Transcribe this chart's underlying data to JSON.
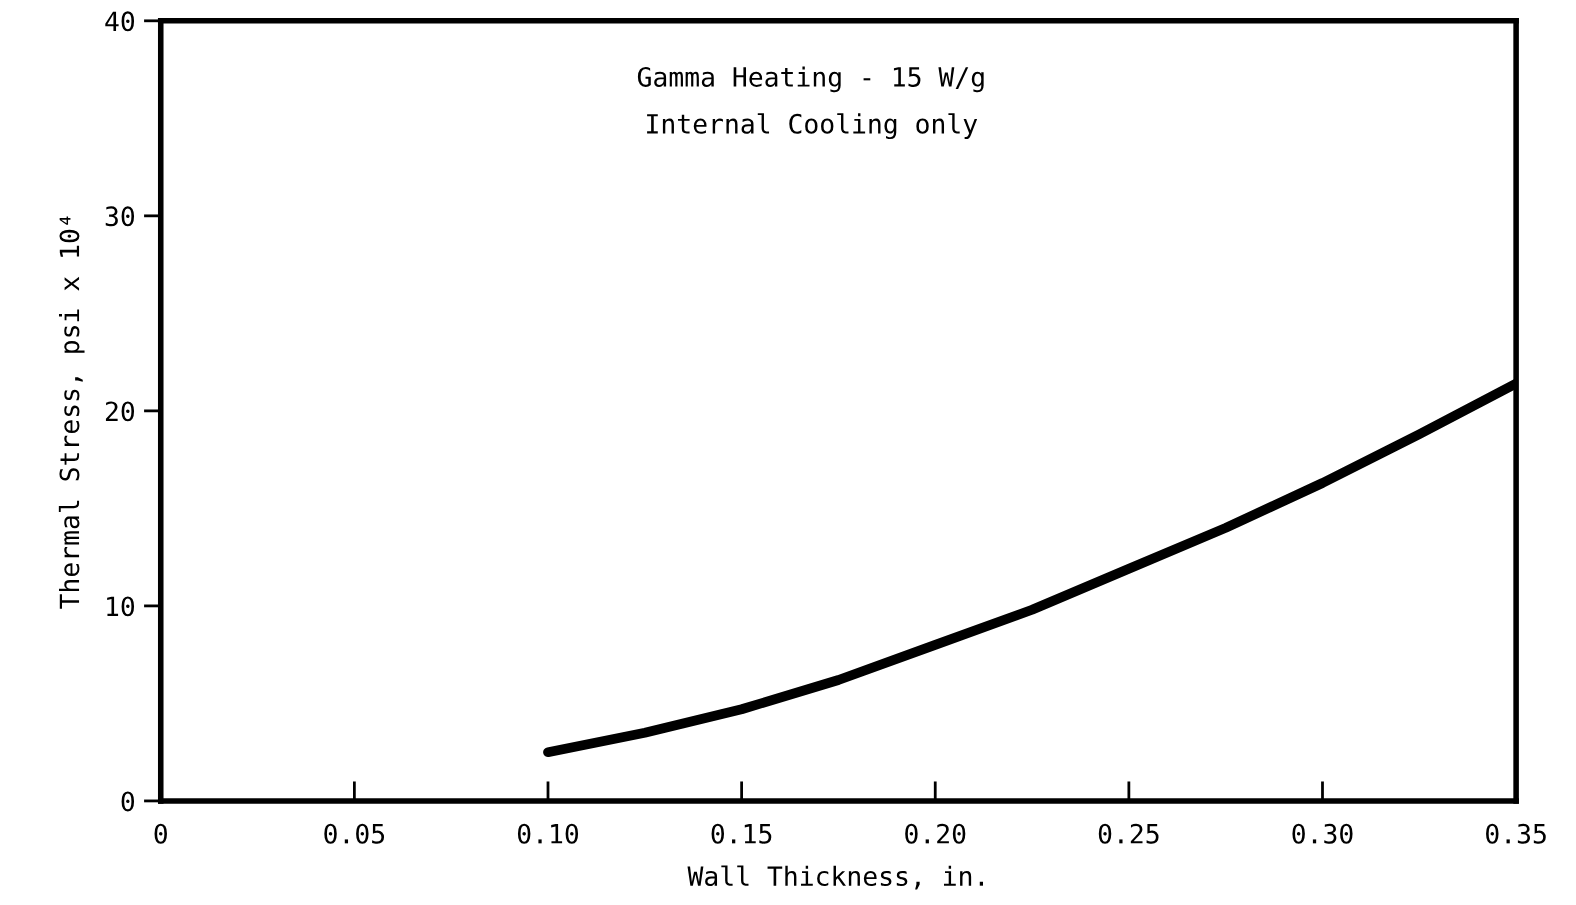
{
  "chart_data": {
    "type": "line",
    "xlabel": "Wall Thickness, in.",
    "ylabel": "Thermal Stress, psi x 10⁴",
    "x": [
      0.1,
      0.125,
      0.15,
      0.175,
      0.2,
      0.225,
      0.25,
      0.275,
      0.3,
      0.325,
      0.35
    ],
    "series": [
      {
        "color": "#000000",
        "values": [
          2.5,
          3.5,
          4.7,
          6.2,
          8.0,
          9.8,
          11.9,
          14.0,
          16.3,
          18.8,
          21.4
        ]
      }
    ],
    "xlim": [
      0,
      0.35
    ],
    "ylim": [
      0,
      40
    ],
    "xticks": [
      0,
      0.05,
      {
        "value": 0.1,
        "label": "0.10"
      },
      0.15,
      {
        "value": 0.2,
        "label": "0.20"
      },
      0.25,
      {
        "value": 0.3,
        "label": "0.30"
      },
      0.35
    ],
    "yticks": [
      0,
      10,
      20,
      30,
      40
    ],
    "annotations": [
      "Gamma Heating - 15 W/g",
      "Internal Cooling only"
    ],
    "grid": false,
    "legend": false,
    "marker": "none",
    "line_style": "solid"
  }
}
